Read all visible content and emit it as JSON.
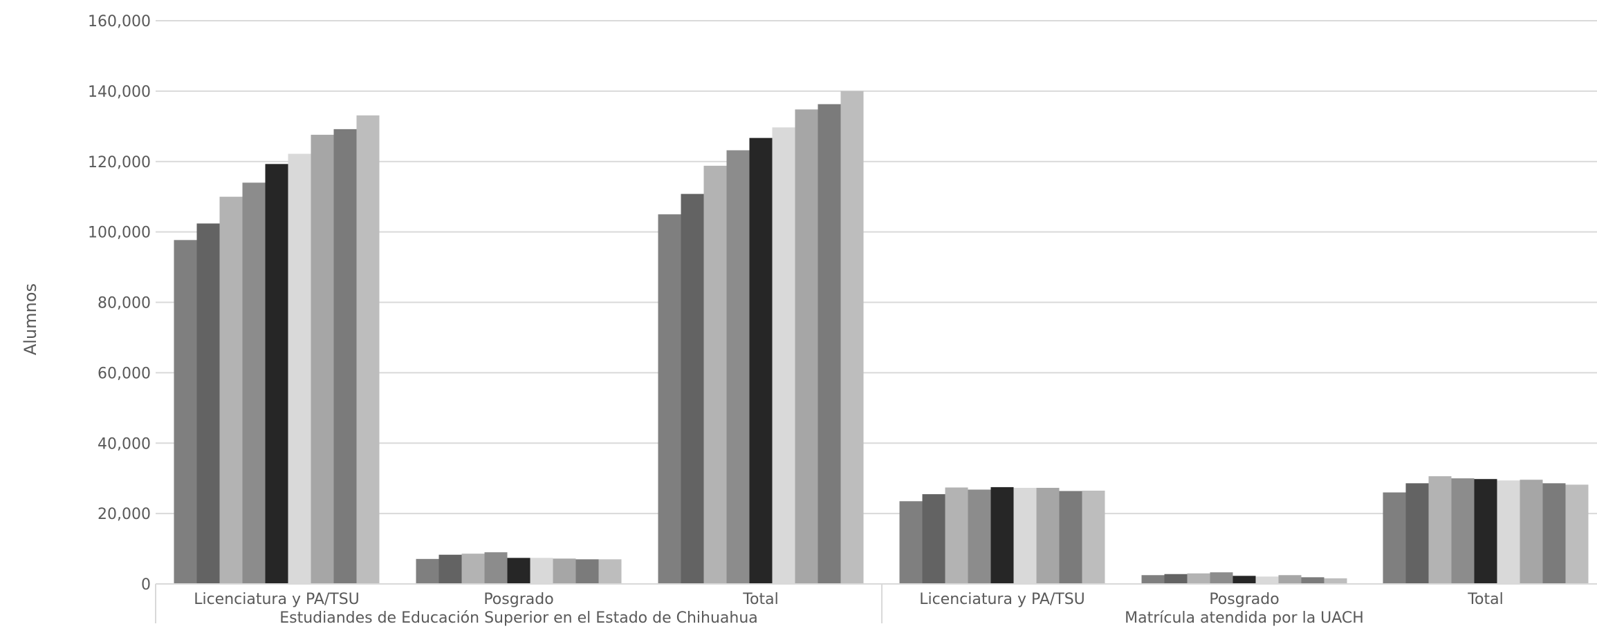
{
  "chart_data": {
    "type": "bar",
    "ylabel": "Alumnos",
    "ylim": [
      0,
      160000
    ],
    "y_ticks": [
      "0",
      "20,000",
      "40,000",
      "60,000",
      "80,000",
      "100,000",
      "120,000",
      "140,000",
      "160,000"
    ],
    "grid": true,
    "legend": "none",
    "groups": [
      {
        "label": "Estudiandes de Educación Superior en el Estado de Chihuahua",
        "categories": [
          "Licenciatura  y PA/TSU",
          "Posgrado",
          "Total"
        ]
      },
      {
        "label": "Matrícula atendida por la UACH",
        "categories": [
          "Licenciatura  y PA/TSU",
          "Posgrado",
          "Total"
        ]
      }
    ],
    "series_colors": [
      "#7f7f7f",
      "#636363",
      "#b3b3b3",
      "#8c8c8c",
      "#262626",
      "#d9d9d9",
      "#a6a6a6",
      "#7b7b7b",
      "#bdbdbd"
    ],
    "series": [
      {
        "values": [
          97700,
          7100,
          105000,
          23500,
          2500,
          26000
        ]
      },
      {
        "values": [
          102400,
          8300,
          110800,
          25500,
          2800,
          28600
        ]
      },
      {
        "values": [
          110000,
          8600,
          118800,
          27400,
          3000,
          30600
        ]
      },
      {
        "values": [
          114000,
          9000,
          123200,
          26800,
          3300,
          30000
        ]
      },
      {
        "values": [
          119300,
          7400,
          126700,
          27500,
          2300,
          29800
        ]
      },
      {
        "values": [
          122200,
          7400,
          129700,
          27300,
          2100,
          29400
        ]
      },
      {
        "values": [
          127600,
          7200,
          134800,
          27300,
          2500,
          29600
        ]
      },
      {
        "values": [
          129200,
          7000,
          136300,
          26400,
          1900,
          28600
        ]
      },
      {
        "values": [
          133100,
          7000,
          140000,
          26500,
          1600,
          28200
        ]
      }
    ]
  }
}
